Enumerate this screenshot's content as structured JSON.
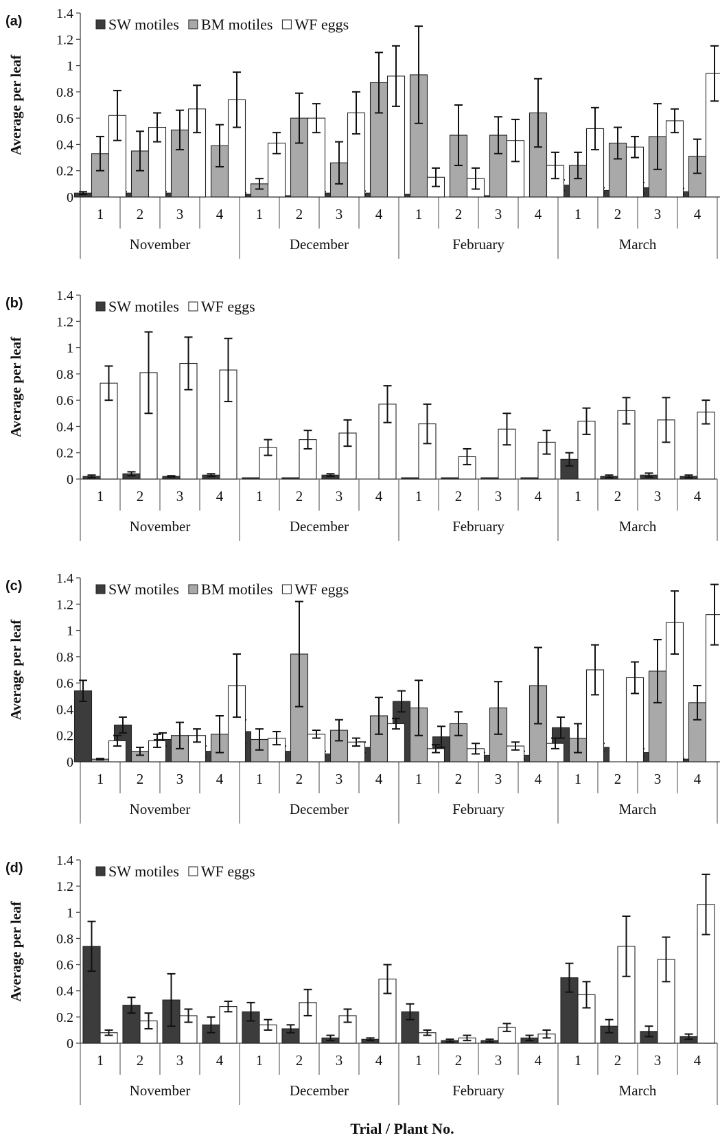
{
  "x_axis_title": "Trial / Plant No.",
  "group_names": [
    "November",
    "December",
    "February",
    "March"
  ],
  "plant_labels": [
    "1",
    "2",
    "3",
    "4"
  ],
  "series_colors": {
    "SW motiles": "#3c3c3c",
    "BM motiles": "#a9a9a9",
    "WF eggs": "#ffffff"
  },
  "chart_data": [
    {
      "type": "bar",
      "panel_label": "(a)",
      "ylabel": "Average per leaf",
      "ylim": [
        0,
        1.4
      ],
      "yticks": [
        "0",
        "0.2",
        "0.4",
        "0.6",
        "0.8",
        "1",
        "1.2",
        "1.4"
      ],
      "legend": [
        "SW motiles",
        "BM motiles",
        "WF eggs"
      ],
      "series": [
        {
          "name": "SW motiles",
          "values": [
            0.03,
            0.03,
            0.03,
            0,
            0.02,
            0.01,
            0.03,
            0.03,
            0.02,
            0,
            0.01,
            0,
            0.09,
            0.05,
            0.07,
            0.04
          ],
          "errors": [
            0.01,
            0.01,
            0.01,
            0,
            0.01,
            0,
            0.01,
            0.015,
            0,
            0,
            0,
            0,
            0.04,
            0.02,
            0.04,
            0.025
          ]
        },
        {
          "name": "BM motiles",
          "values": [
            0.33,
            0.35,
            0.51,
            0.39,
            0.1,
            0.6,
            0.26,
            0.87,
            0.93,
            0.47,
            0.47,
            0.64,
            0.24,
            0.41,
            0.46,
            0.31
          ],
          "errors": [
            0.13,
            0.15,
            0.15,
            0.16,
            0.04,
            0.19,
            0.16,
            0.23,
            0.37,
            0.23,
            0.14,
            0.26,
            0.1,
            0.12,
            0.25,
            0.13
          ]
        },
        {
          "name": "WF eggs",
          "values": [
            0.62,
            0.53,
            0.67,
            0.74,
            0.41,
            0.6,
            0.64,
            0.92,
            0.15,
            0.14,
            0.43,
            0.24,
            0.52,
            0.38,
            0.58,
            0.94
          ],
          "errors": [
            0.19,
            0.11,
            0.18,
            0.21,
            0.08,
            0.11,
            0.16,
            0.23,
            0.07,
            0.08,
            0.16,
            0.1,
            0.16,
            0.08,
            0.09,
            0.21
          ]
        }
      ]
    },
    {
      "type": "bar",
      "panel_label": "(b)",
      "ylabel": "Average per leaf",
      "ylim": [
        0,
        1.4
      ],
      "yticks": [
        "0",
        "0.2",
        "0.4",
        "0.6",
        "0.8",
        "1",
        "1.2",
        "1.4"
      ],
      "legend": [
        "SW motiles",
        "WF eggs"
      ],
      "series": [
        {
          "name": "SW motiles",
          "values": [
            0.02,
            0.04,
            0.02,
            0.03,
            0.01,
            0.01,
            0.03,
            0,
            0.01,
            0.01,
            0.01,
            0.01,
            0.15,
            0.02,
            0.03,
            0.02
          ],
          "errors": [
            0.01,
            0.015,
            0.005,
            0.01,
            0,
            0,
            0.01,
            0,
            0,
            0,
            0,
            0,
            0.05,
            0.01,
            0.015,
            0.01
          ]
        },
        {
          "name": "WF eggs",
          "values": [
            0.73,
            0.81,
            0.88,
            0.83,
            0.24,
            0.3,
            0.35,
            0.57,
            0.42,
            0.17,
            0.38,
            0.28,
            0.44,
            0.52,
            0.45,
            0.51
          ],
          "errors": [
            0.13,
            0.31,
            0.2,
            0.24,
            0.06,
            0.07,
            0.1,
            0.14,
            0.15,
            0.06,
            0.12,
            0.09,
            0.1,
            0.1,
            0.17,
            0.09
          ]
        }
      ]
    },
    {
      "type": "bar",
      "panel_label": "(c)",
      "ylabel": "Average per leaf",
      "ylim": [
        0,
        1.4
      ],
      "yticks": [
        "0",
        "0.2",
        "0.4",
        "0.6",
        "0.8",
        "1",
        "1.2",
        "1.4"
      ],
      "legend": [
        "SW motiles",
        "BM motiles",
        "WF eggs"
      ],
      "series": [
        {
          "name": "SW motiles",
          "values": [
            0.54,
            0.28,
            0.17,
            0.08,
            0.23,
            0.08,
            0.06,
            0.11,
            0.46,
            0.19,
            0.05,
            0.05,
            0.26,
            0.11,
            0.07,
            0.02
          ],
          "errors": [
            0.08,
            0.06,
            0.05,
            0.04,
            0.09,
            0.04,
            0.02,
            0.04,
            0.08,
            0.08,
            0.02,
            0.03,
            0.08,
            0.03,
            0.03,
            0.005
          ]
        },
        {
          "name": "BM motiles",
          "values": [
            0.02,
            0.08,
            0.2,
            0.21,
            0.17,
            0.82,
            0.24,
            0.35,
            0.41,
            0.29,
            0.41,
            0.58,
            0.18,
            0,
            0.69,
            0.45
          ],
          "errors": [
            0.005,
            0.03,
            0.1,
            0.14,
            0.08,
            0.4,
            0.08,
            0.14,
            0.21,
            0.09,
            0.2,
            0.29,
            0.11,
            0,
            0.24,
            0.13
          ]
        },
        {
          "name": "WF eggs",
          "values": [
            0.16,
            0.16,
            0.2,
            0.58,
            0.18,
            0.21,
            0.15,
            0.29,
            0.1,
            0.1,
            0.12,
            0.14,
            0.7,
            0.64,
            1.06,
            1.12
          ],
          "errors": [
            0.04,
            0.05,
            0.05,
            0.24,
            0.05,
            0.03,
            0.03,
            0.04,
            0.03,
            0.04,
            0.03,
            0.04,
            0.19,
            0.12,
            0.24,
            0.23
          ]
        }
      ]
    },
    {
      "type": "bar",
      "panel_label": "(d)",
      "ylabel": "Average per leaf",
      "ylim": [
        0,
        1.4
      ],
      "yticks": [
        "0",
        "0.2",
        "0.4",
        "0.6",
        "0.8",
        "1",
        "1.2",
        "1.4"
      ],
      "legend": [
        "SW motiles",
        "WF eggs"
      ],
      "series": [
        {
          "name": "SW motiles",
          "values": [
            0.74,
            0.29,
            0.33,
            0.14,
            0.24,
            0.11,
            0.04,
            0.03,
            0.24,
            0.02,
            0.02,
            0.04,
            0.5,
            0.13,
            0.09,
            0.05
          ],
          "errors": [
            0.19,
            0.06,
            0.2,
            0.06,
            0.07,
            0.03,
            0.02,
            0.01,
            0.06,
            0.01,
            0.01,
            0.02,
            0.11,
            0.05,
            0.04,
            0.02
          ]
        },
        {
          "name": "WF eggs",
          "values": [
            0.08,
            0.17,
            0.21,
            0.28,
            0.14,
            0.31,
            0.21,
            0.49,
            0.08,
            0.04,
            0.12,
            0.07,
            0.37,
            0.74,
            0.64,
            1.06
          ],
          "errors": [
            0.02,
            0.06,
            0.05,
            0.04,
            0.04,
            0.1,
            0.05,
            0.11,
            0.02,
            0.02,
            0.03,
            0.03,
            0.1,
            0.23,
            0.17,
            0.23
          ]
        }
      ]
    }
  ]
}
